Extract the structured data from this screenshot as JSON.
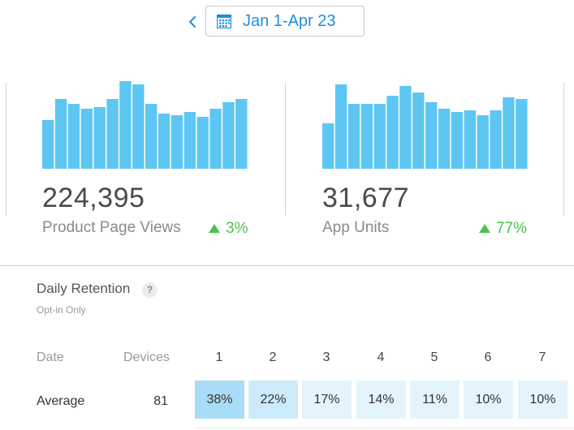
{
  "header": {
    "back_icon": "chevron-left-icon",
    "calendar_icon": "calendar-icon",
    "date_range": "Jan 1-Apr 23"
  },
  "colors": {
    "accent": "#1d8fe0",
    "bar": "#5ec6f2",
    "positive": "#4cc24a"
  },
  "metrics": [
    {
      "value": "224,395",
      "label": "Product Page Views",
      "delta": "3%",
      "delta_direction": "up",
      "chart_data": {
        "type": "bar",
        "values": [
          30,
          43,
          40,
          37,
          38,
          43,
          54,
          52,
          40,
          34,
          33,
          35,
          32,
          37,
          41,
          43
        ]
      }
    },
    {
      "value": "31,677",
      "label": "App Units",
      "delta": "77%",
      "delta_direction": "up",
      "chart_data": {
        "type": "bar",
        "values": [
          28,
          52,
          40,
          40,
          40,
          45,
          51,
          47,
          41,
          37,
          35,
          36,
          33,
          36,
          44,
          43
        ]
      }
    }
  ],
  "retention": {
    "title": "Daily Retention",
    "help_icon": "question-mark-icon",
    "help_glyph": "?",
    "subtitle": "Opt-in Only",
    "columns": {
      "date": "Date",
      "devices": "Devices",
      "days": [
        "1",
        "2",
        "3",
        "4",
        "5",
        "6",
        "7"
      ]
    },
    "rows": [
      {
        "label": "Average",
        "devices": "81",
        "cells": [
          "38%",
          "22%",
          "17%",
          "14%",
          "11%",
          "10%",
          "10%"
        ],
        "cell_colors": [
          "#a9dcf6",
          "#ccebfa",
          "#e4f4fc",
          "#e4f4fc",
          "#e4f4fc",
          "#e4f4fc",
          "#e4f4fc"
        ]
      }
    ]
  }
}
